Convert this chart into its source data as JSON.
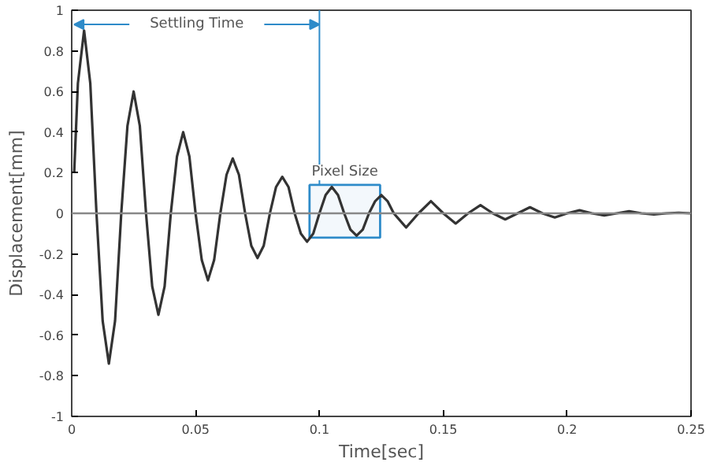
{
  "chart_data": {
    "type": "line",
    "xlabel": "Time[sec]",
    "ylabel": "Displacement[mm]",
    "xlim": [
      0,
      0.25
    ],
    "ylim": [
      -1,
      1
    ],
    "xticks": [
      0,
      0.05,
      0.1,
      0.15,
      0.2,
      0.25
    ],
    "yticks": [
      -1,
      -0.8,
      -0.6,
      -0.4,
      -0.2,
      0,
      0.2,
      0.4,
      0.6,
      0.8,
      1
    ],
    "grid": false,
    "marker": "none",
    "line_style": "solid",
    "series": [
      {
        "color": "#333333",
        "x": [
          0.001,
          0.0025,
          0.005,
          0.0075,
          0.01,
          0.0125,
          0.015,
          0.0175,
          0.02,
          0.0225,
          0.025,
          0.0275,
          0.03,
          0.0325,
          0.035,
          0.0375,
          0.04,
          0.0425,
          0.045,
          0.0475,
          0.05,
          0.0525,
          0.055,
          0.0575,
          0.06,
          0.0625,
          0.065,
          0.0675,
          0.07,
          0.0725,
          0.075,
          0.0775,
          0.08,
          0.0825,
          0.085,
          0.0875,
          0.09,
          0.0925,
          0.095,
          0.0975,
          0.1,
          0.1025,
          0.105,
          0.1075,
          0.11,
          0.1125,
          0.115,
          0.1175,
          0.12,
          0.1225,
          0.125,
          0.1275,
          0.13,
          0.135,
          0.14,
          0.145,
          0.15,
          0.155,
          0.16,
          0.165,
          0.17,
          0.175,
          0.18,
          0.185,
          0.19,
          0.195,
          0.2,
          0.205,
          0.21,
          0.215,
          0.22,
          0.225,
          0.23,
          0.235,
          0.24,
          0.245,
          0.25
        ],
        "values": [
          0.2,
          0.64,
          0.9,
          0.64,
          0,
          -0.53,
          -0.74,
          -0.53,
          0,
          0.43,
          0.6,
          0.43,
          0,
          -0.36,
          -0.5,
          -0.36,
          0,
          0.28,
          0.4,
          0.28,
          0,
          -0.23,
          -0.33,
          -0.23,
          0,
          0.19,
          0.27,
          0.19,
          0,
          -0.16,
          -0.22,
          -0.16,
          0,
          0.13,
          0.18,
          0.13,
          0,
          -0.1,
          -0.14,
          -0.1,
          0,
          0.09,
          0.13,
          0.09,
          0,
          -0.08,
          -0.11,
          -0.08,
          0,
          0.06,
          0.09,
          0.06,
          0,
          -0.07,
          0,
          0.06,
          0,
          -0.05,
          0,
          0.04,
          0,
          -0.03,
          0,
          0.03,
          0,
          -0.02,
          0,
          0.015,
          0,
          -0.01,
          0,
          0.01,
          0,
          -0.005,
          0,
          0.003,
          0
        ]
      }
    ],
    "ref_lines": [
      {
        "axis": "y",
        "value": 0,
        "color": "#888888"
      },
      {
        "axis": "x",
        "value": 0.1,
        "color": "#2e8bc9"
      }
    ],
    "bands": [
      {
        "axis": "x",
        "from": 0.096,
        "to": 0.1245,
        "label": "Pixel Size",
        "color": "#2e8bc9"
      }
    ],
    "annotations": [
      "Settling Time"
    ]
  }
}
